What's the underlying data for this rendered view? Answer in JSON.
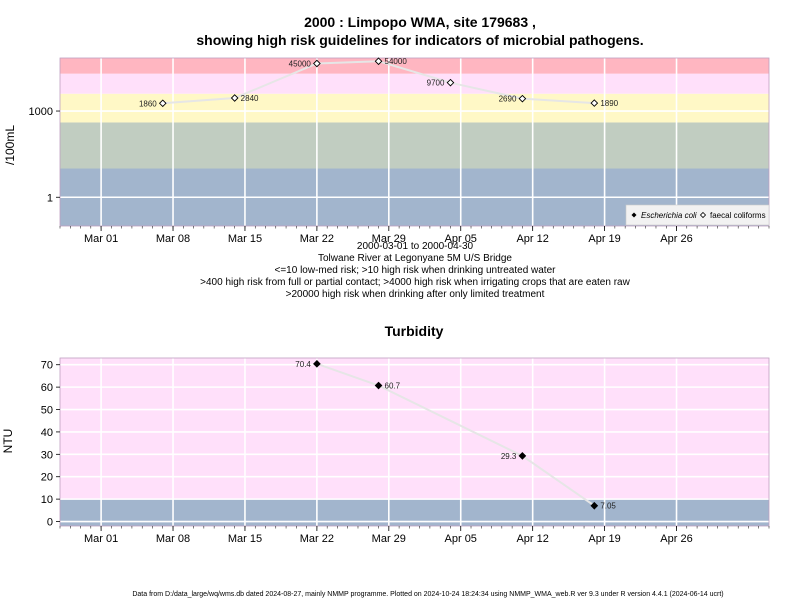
{
  "chart_data": [
    {
      "type": "line",
      "title_line1": "2000 : Limpopo WMA, site 179683 ,",
      "title_line2": "showing high risk guidelines for indicators of microbial pathogens.",
      "ylabel": "/100mL",
      "yscale": "log",
      "ylim": [
        0.1,
        70000
      ],
      "yticks": [
        {
          "value": 1,
          "label": "1"
        },
        {
          "value": 1000,
          "label": "1000"
        }
      ],
      "xlim": [
        "2000-02-26",
        "2000-05-05"
      ],
      "xticks": [
        {
          "date": "2000-03-01",
          "label": "Mar 01"
        },
        {
          "date": "2000-03-08",
          "label": "Mar 08"
        },
        {
          "date": "2000-03-15",
          "label": "Mar 15"
        },
        {
          "date": "2000-03-22",
          "label": "Mar 22"
        },
        {
          "date": "2000-03-29",
          "label": "Mar 29"
        },
        {
          "date": "2000-04-05",
          "label": "Apr 05"
        },
        {
          "date": "2000-04-12",
          "label": "Apr 12"
        },
        {
          "date": "2000-04-19",
          "label": "Apr 19"
        },
        {
          "date": "2000-04-26",
          "label": "Apr 26"
        }
      ],
      "bands": [
        {
          "from": 0.1,
          "to": 10,
          "color": "#a2b5cd"
        },
        {
          "from": 10,
          "to": 400,
          "color": "#c1cdc1"
        },
        {
          "from": 400,
          "to": 4000,
          "color": "#fff8c6"
        },
        {
          "from": 4000,
          "to": 20000,
          "color": "#ffe0fa"
        },
        {
          "from": 20000,
          "to": 70000,
          "color": "#ffb6c1"
        }
      ],
      "series": [
        {
          "name": "faecal coliforms",
          "marker": "open-diamond",
          "line_color": "#e6e6e6",
          "points": [
            {
              "x": "2000-03-07",
              "y": 1860,
              "label": "1860"
            },
            {
              "x": "2000-03-14",
              "y": 2840,
              "label": "2840"
            },
            {
              "x": "2000-03-22",
              "y": 45000,
              "label": "45000"
            },
            {
              "x": "2000-03-28",
              "y": 54000,
              "label": "54000"
            },
            {
              "x": "2000-04-04",
              "y": 9700,
              "label": "9700"
            },
            {
              "x": "2000-04-11",
              "y": 2690,
              "label": "2690"
            },
            {
              "x": "2000-04-18",
              "y": 1890,
              "label": "1890"
            }
          ]
        },
        {
          "name": "Escherichia coli",
          "marker": "filled-diamond",
          "points": []
        }
      ],
      "legend": {
        "position": "bottom-right",
        "items": [
          "Escherichia coli",
          "faecal coliforms"
        ]
      },
      "caption": [
        "2000-03-01 to 2000-04-30",
        "Tolwane River at Legonyane 5M U/S Bridge",
        "<=10 low-med risk; >10 high risk when drinking untreated water",
        ">400 high risk from full or partial contact; >4000 high risk when irrigating crops that are eaten raw",
        ">20000 high risk when drinking after only limited treatment"
      ]
    },
    {
      "type": "line",
      "title": "Turbidity",
      "ylabel": "NTU",
      "ylim": [
        -2,
        73
      ],
      "yticks": [
        0,
        10,
        20,
        30,
        40,
        50,
        60,
        70
      ],
      "xlim": [
        "2000-02-26",
        "2000-05-05"
      ],
      "xticks": [
        {
          "date": "2000-03-01",
          "label": "Mar 01"
        },
        {
          "date": "2000-03-08",
          "label": "Mar 08"
        },
        {
          "date": "2000-03-15",
          "label": "Mar 15"
        },
        {
          "date": "2000-03-22",
          "label": "Mar 22"
        },
        {
          "date": "2000-03-29",
          "label": "Mar 29"
        },
        {
          "date": "2000-04-05",
          "label": "Apr 05"
        },
        {
          "date": "2000-04-12",
          "label": "Apr 12"
        },
        {
          "date": "2000-04-19",
          "label": "Apr 19"
        },
        {
          "date": "2000-04-26",
          "label": "Apr 26"
        }
      ],
      "bands": [
        {
          "from": -2,
          "to": 10,
          "color": "#a2b5cd"
        },
        {
          "from": 10,
          "to": 73,
          "color": "#ffe0fa"
        }
      ],
      "series": [
        {
          "marker": "filled-diamond",
          "line_color": "#e6e6e6",
          "points": [
            {
              "x": "2000-03-22",
              "y": 70.4,
              "label": "70.4"
            },
            {
              "x": "2000-03-28",
              "y": 60.7,
              "label": "60.7"
            },
            {
              "x": "2000-04-11",
              "y": 29.3,
              "label": "29.3"
            },
            {
              "x": "2000-04-18",
              "y": 7.05,
              "label": "7.05"
            }
          ]
        }
      ]
    }
  ],
  "footer": "Data from D:/data_large/wq/wms.db dated 2024-08-27, mainly NMMP programme. Plotted on 2024-10-24 18:24:34 using NMMP_WMA_web.R ver 9.3 under R version 4.4.1 (2024-06-14 ucrt)"
}
